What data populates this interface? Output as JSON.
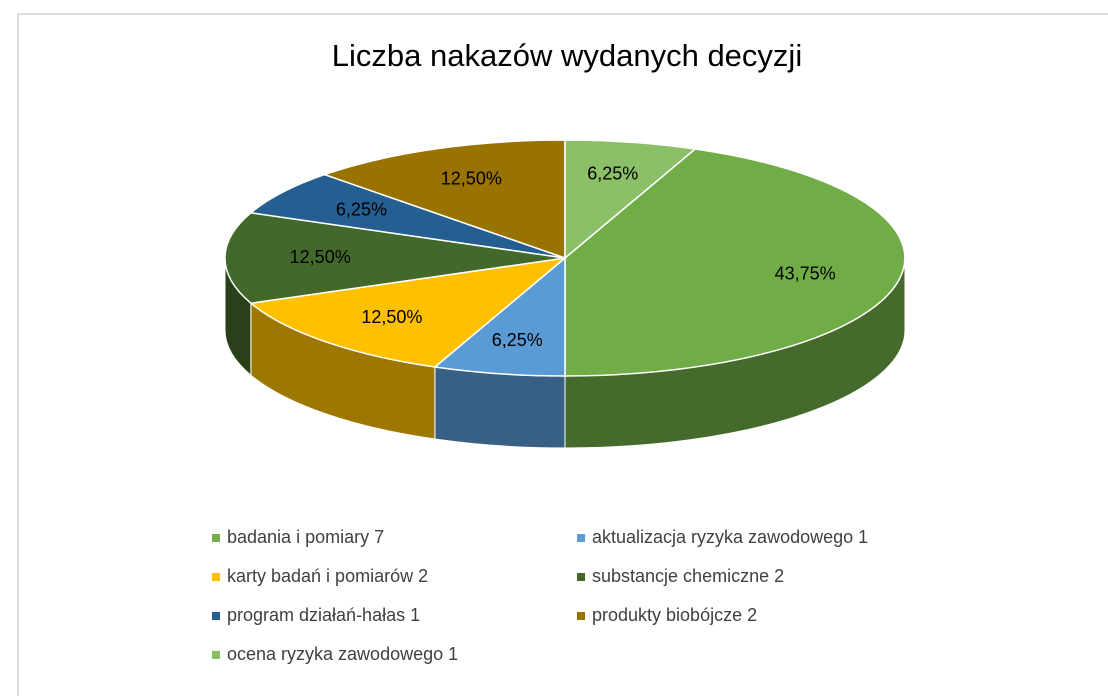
{
  "chart_data": {
    "type": "pie3d",
    "title": "Liczba nakazów wydanych decyzji",
    "categories": [
      "badania i pomiary 7",
      "aktualizacja ryzyka zawodowego  1",
      "karty badań i pomiarów  2",
      "substancje chemiczne   2",
      "program działań-hałas 1",
      "produkty biobójcze 2",
      "ocena ryzyka zawodowego  1"
    ],
    "values": [
      43.75,
      6.25,
      12.5,
      12.5,
      6.25,
      12.5,
      6.25
    ],
    "value_labels": [
      "43,75%",
      "6,25%",
      "12,50%",
      "12,50%",
      "6,25%",
      "12,50%",
      "6,25%"
    ],
    "colors": [
      "#70ad47",
      "#5b9bd5",
      "#ffc000",
      "#43682b",
      "#255e91",
      "#997300",
      "#8cc068"
    ],
    "legend": "bottom"
  }
}
